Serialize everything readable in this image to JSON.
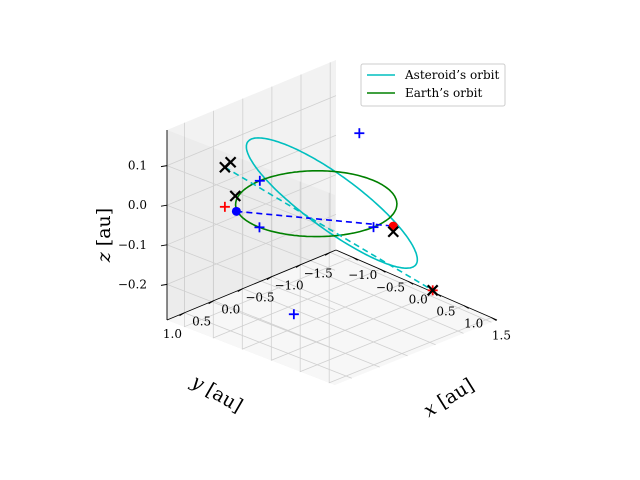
{
  "chart_data": {
    "type": "line",
    "projection": "3d",
    "xlabel": "$x$ [au]",
    "ylabel": "$y$ [au]",
    "zlabel": "$z$ [au]",
    "x_axis": {
      "label_var": "x",
      "label_unit": "[au]",
      "ticks": [
        "−1.0",
        "−0.5",
        "0.0",
        "0.5",
        "1.0",
        "1.5"
      ],
      "values": [
        -1.0,
        -0.5,
        0.0,
        0.5,
        1.0,
        1.5
      ],
      "lim": [
        -1.3,
        1.6
      ]
    },
    "y_axis": {
      "label_var": "y",
      "label_unit": "[au]",
      "ticks": [
        "1.0",
        "0.5",
        "0.0",
        "−0.5",
        "−1.0",
        "−1.5"
      ],
      "values": [
        1.0,
        0.5,
        0.0,
        -0.5,
        -1.0,
        -1.5
      ],
      "lim": [
        -1.6,
        1.3
      ]
    },
    "z_axis": {
      "label_var": "z",
      "label_unit": "[au]",
      "ticks": [
        "0.1",
        "0.0",
        "−0.1",
        "−0.2"
      ],
      "values": [
        0.1,
        0.0,
        -0.1,
        -0.2
      ],
      "lim": [
        -0.29,
        0.19
      ]
    },
    "grid": true,
    "legend_position": "top-right",
    "series": [
      {
        "name": "Asteroid’s orbit",
        "color": "#00bfbf",
        "style": "solid",
        "kind": "ellipse",
        "a": 1.15,
        "e": 0.4,
        "inc_deg": 8,
        "omega_deg": 30,
        "node_deg": 40
      },
      {
        "name": "Earth’s orbit",
        "color": "#008000",
        "style": "solid",
        "kind": "circle",
        "r": 1.0
      }
    ],
    "lines": [
      {
        "color": "#0000ff",
        "style": "dashed",
        "from": [
          -0.55,
          0.85,
          0.0
        ],
        "to": [
          1.15,
          -0.2,
          0.0
        ]
      },
      {
        "color": "#00bfbf",
        "style": "dashed",
        "from": [
          -0.75,
          0.85,
          0.1
        ],
        "to": [
          1.0,
          -1.05,
          -0.22
        ]
      }
    ],
    "points": [
      {
        "label": "Earth",
        "color": "#0000ff",
        "marker": "circle",
        "xyz": [
          -0.55,
          0.85,
          0.0
        ]
      },
      {
        "label": "Asteroid",
        "color": "#ff0000",
        "marker": "circle",
        "xyz": [
          1.15,
          -0.2,
          0.0
        ]
      },
      {
        "color": "#0000ff",
        "marker": "plus",
        "xyz": [
          1.0,
          0.0,
          0.0
        ]
      },
      {
        "color": "#0000ff",
        "marker": "plus",
        "xyz": [
          -1.0,
          0.0,
          0.0
        ]
      },
      {
        "color": "#0000ff",
        "marker": "plus",
        "xyz": [
          0.0,
          1.0,
          0.0
        ]
      },
      {
        "color": "#0000ff",
        "marker": "plus",
        "xyz": [
          0.3,
          -0.45,
          0.17
        ]
      },
      {
        "color": "#0000ff",
        "marker": "plus",
        "xyz": [
          0.3,
          0.7,
          -0.22
        ]
      },
      {
        "color": "#ff0000",
        "marker": "plus",
        "xyz": [
          -0.75,
          0.85,
          0.0
        ]
      },
      {
        "color": "#ff0000",
        "marker": "plus",
        "xyz": [
          1.0,
          -1.05,
          -0.22
        ]
      },
      {
        "color": "#000000",
        "marker": "x",
        "xyz": [
          -0.72,
          0.7,
          0.02
        ]
      },
      {
        "color": "#000000",
        "marker": "x",
        "xyz": [
          -0.75,
          0.85,
          0.1
        ]
      },
      {
        "color": "#000000",
        "marker": "x",
        "xyz": [
          -0.55,
          0.95,
          0.13
        ]
      },
      {
        "color": "#000000",
        "marker": "x",
        "xyz": [
          1.1,
          -0.25,
          -0.02
        ]
      },
      {
        "color": "#000000",
        "marker": "x",
        "xyz": [
          1.0,
          -1.05,
          -0.22
        ]
      }
    ]
  }
}
